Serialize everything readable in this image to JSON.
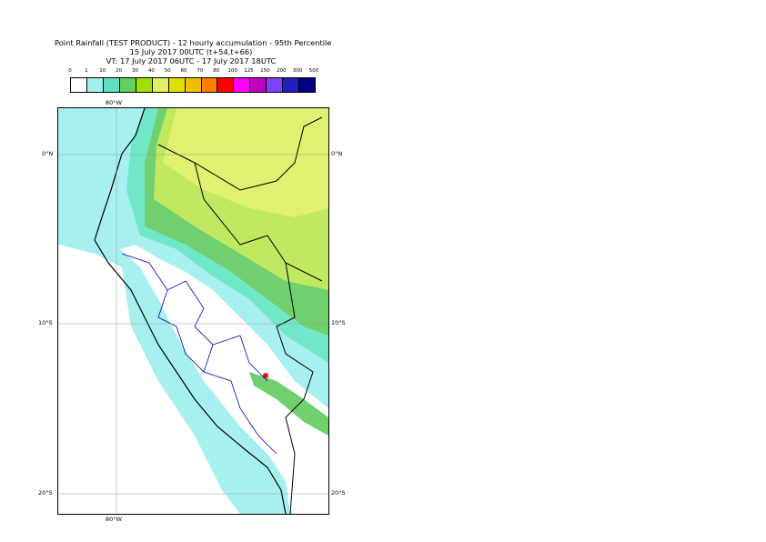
{
  "title": {
    "line1": "Point Rainfall (TEST PRODUCT) - 12 hourly accumulation - 95th Percentile",
    "line2": "15 July 2017 00UTC (t+54,t+66)",
    "line3": "VT: 17 July 2017 06UTC - 17 July 2017 18UTC"
  },
  "legend": {
    "thresholds": [
      "0",
      "1",
      "10",
      "20",
      "30",
      "40",
      "50",
      "60",
      "70",
      "80",
      "100",
      "125",
      "150",
      "200",
      "300",
      "500"
    ],
    "colors": [
      "#ffffff",
      "#a0f0f0",
      "#60e0c0",
      "#60d060",
      "#a0e000",
      "#e0f060",
      "#e0e000",
      "#f0c000",
      "#ff8000",
      "#ff0000",
      "#ff00ff",
      "#c000c0",
      "#8040ff",
      "#2020c0",
      "#000080"
    ]
  },
  "axes": {
    "lon_top": "80°W",
    "lon_bottom": "80°W",
    "lat_0_left": "0°N",
    "lat_0_right": "0°N",
    "lat_10_left": "10°S",
    "lat_10_right": "10°S",
    "lat_20_left": "20°S",
    "lat_20_right": "20°S"
  },
  "map": {
    "ocean_color": "#a8f0f0",
    "land_color": "#ffffff",
    "coast_color": "#000000",
    "border_color": "#0000c0"
  }
}
